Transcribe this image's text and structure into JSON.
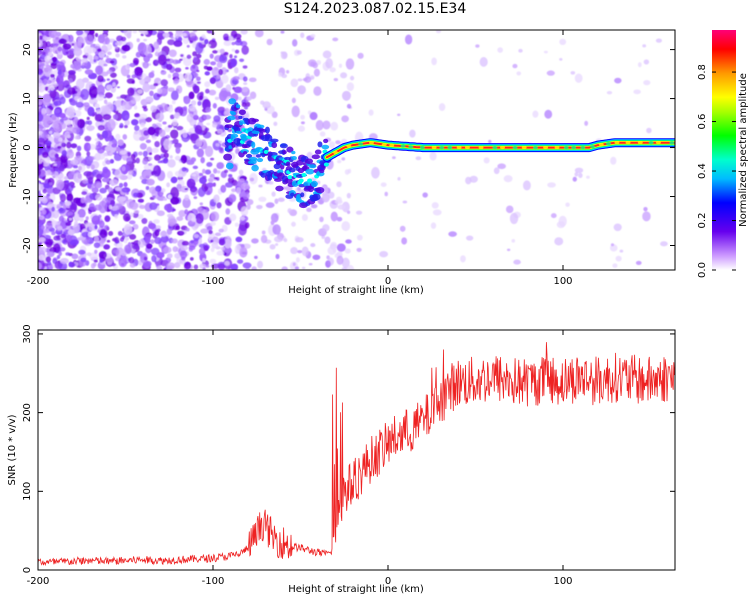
{
  "figure": {
    "title": "S124.2023.087.02.15.E34"
  },
  "chart_data": [
    {
      "type": "heatmap",
      "xlabel": "Height of straight line (km)",
      "ylabel": "Frequency (Hz)",
      "xlim": [
        -200,
        164
      ],
      "ylim": [
        -25,
        24
      ],
      "xticks": [
        -200,
        -100,
        0,
        100
      ],
      "yticks": [
        -20,
        -10,
        0,
        10,
        20
      ],
      "colorbar": {
        "label": "Normalized spectral amplitude",
        "range": [
          0,
          0.97
        ],
        "ticks": [
          0.0,
          0.2,
          0.4,
          0.6,
          0.8
        ]
      },
      "ridge": {
        "x": [
          -90,
          -80,
          -70,
          -60,
          -50,
          -45,
          -40,
          -35,
          -30,
          -25,
          -20,
          -10,
          0,
          20,
          50,
          80,
          100,
          115,
          120,
          130,
          140,
          150,
          164
        ],
        "y": [
          5,
          2,
          -1,
          -4,
          -7,
          -7,
          -5,
          -2,
          -1,
          0,
          0.5,
          1,
          0.5,
          0,
          0,
          0,
          0,
          0,
          0.5,
          1,
          1,
          1,
          1
        ]
      }
    },
    {
      "type": "line",
      "xlabel": "Height of straight line (km)",
      "ylabel": "SNR (10 * v/v)",
      "xlim": [
        -200,
        164
      ],
      "ylim": [
        0,
        305
      ],
      "xticks": [
        -200,
        -100,
        0,
        100
      ],
      "yticks": [
        0,
        100,
        200,
        300
      ],
      "series": [
        {
          "color": "#ee2222",
          "x": [
            -200,
            -190,
            -180,
            -170,
            -160,
            -150,
            -140,
            -130,
            -120,
            -110,
            -100,
            -90,
            -85,
            -80,
            -75,
            -72,
            -70,
            -65,
            -60,
            -55,
            -50,
            -45,
            -40,
            -35,
            -32,
            -30,
            -28,
            -25,
            -20,
            -15,
            -10,
            -5,
            0,
            5,
            10,
            15,
            20,
            25,
            30,
            35,
            40,
            50,
            60,
            70,
            80,
            90,
            100,
            110,
            120,
            130,
            140,
            150,
            160,
            164
          ],
          "y": [
            10,
            10,
            11,
            12,
            11,
            12,
            13,
            12,
            13,
            14,
            15,
            18,
            20,
            28,
            45,
            60,
            55,
            40,
            35,
            30,
            28,
            25,
            22,
            20,
            25,
            45,
            75,
            100,
            110,
            125,
            140,
            150,
            160,
            170,
            175,
            180,
            190,
            200,
            215,
            230,
            238,
            240,
            245,
            240,
            238,
            242,
            240,
            245,
            240,
            245,
            242,
            240,
            245,
            242
          ]
        }
      ]
    }
  ]
}
